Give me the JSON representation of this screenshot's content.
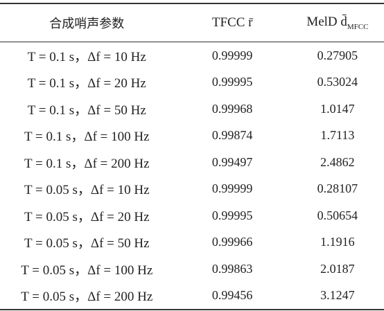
{
  "table": {
    "header": [
      "合成哨声参数",
      "TFCC r̄",
      {
        "text": "MelD d̄",
        "subscript": "MFCC"
      }
    ],
    "rows": [
      [
        "T = 0.1 s，Δf = 10 Hz",
        "0.99999",
        "0.27905"
      ],
      [
        "T = 0.1 s，Δf = 20 Hz",
        "0.99995",
        "0.53024"
      ],
      [
        "T = 0.1 s，Δf = 50 Hz",
        "0.99968",
        "1.0147"
      ],
      [
        "T = 0.1 s，Δf = 100 Hz",
        "0.99874",
        "1.7113"
      ],
      [
        "T = 0.1 s，Δf = 200 Hz",
        "0.99497",
        "2.4862"
      ],
      [
        "T = 0.05 s，Δf = 10 Hz",
        "0.99999",
        "0.28107"
      ],
      [
        "T = 0.05 s，Δf = 20 Hz",
        "0.99995",
        "0.50654"
      ],
      [
        "T = 0.05 s，Δf = 50 Hz",
        "0.99966",
        "1.1916"
      ],
      [
        "T = 0.05 s，Δf = 100 Hz",
        "0.99863",
        "2.0187"
      ],
      [
        "T = 0.05 s，Δf = 200 Hz",
        "0.99456",
        "3.1247"
      ]
    ]
  }
}
